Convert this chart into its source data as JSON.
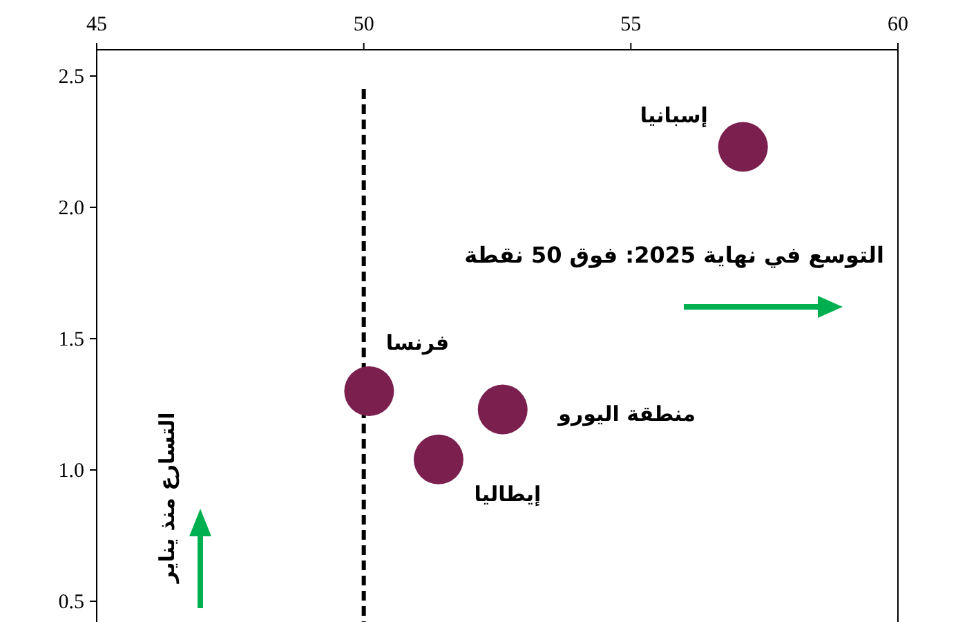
{
  "chart_data": {
    "type": "scatter",
    "xlim": [
      45,
      60
    ],
    "xticks": [
      45,
      50,
      55,
      60
    ],
    "ylim": [
      0.4,
      2.6
    ],
    "yticks": [
      {
        "value": 0.5,
        "label": "0.5"
      },
      {
        "value": 1,
        "label": "1.0"
      },
      {
        "value": 1.5,
        "label": "1.5"
      },
      {
        "value": 2,
        "label": "2.0"
      },
      {
        "value": 2.5,
        "label": "2.5"
      }
    ],
    "grid": false,
    "legend": false,
    "marker": "circle",
    "series": [
      {
        "name": "إسبانيا",
        "color": "#7b1f4f",
        "x": [
          57.1
        ],
        "values": [
          2.23
        ]
      },
      {
        "name": "فرنسا",
        "color": "#7b1f4f",
        "x": [
          50.1
        ],
        "values": [
          1.3
        ]
      },
      {
        "name": "منطقة اليورو",
        "color": "#7b1f4f",
        "x": [
          52.6
        ],
        "values": [
          1.23
        ]
      },
      {
        "name": "إيطاليا",
        "color": "#7b1f4f",
        "x": [
          51.4
        ],
        "values": [
          1.04
        ]
      }
    ],
    "ref_lines": [
      {
        "axis": "x",
        "value": 50,
        "label": null,
        "color": "#000000",
        "line_style": "dashed"
      }
    ],
    "annotations": [
      "التوسع في نهاية 2025: فوق 50 نقطة",
      "التسارع منذ يناير"
    ]
  }
}
